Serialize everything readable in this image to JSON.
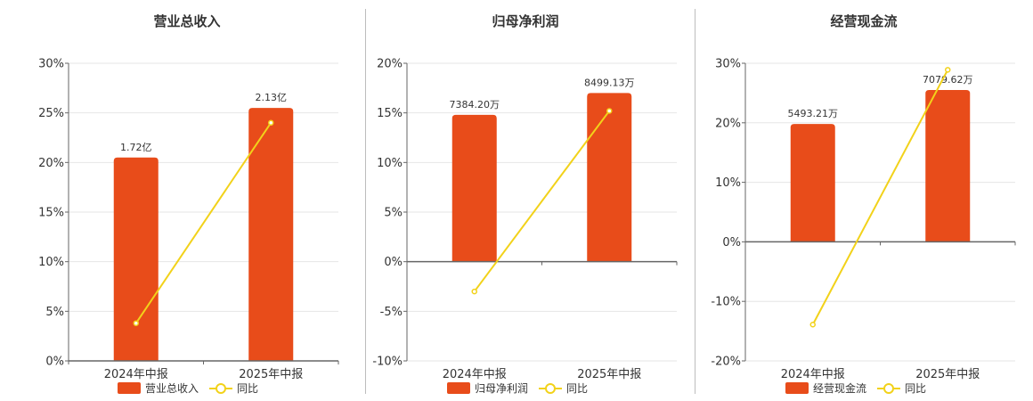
{
  "colors": {
    "bar": "#E84C1A",
    "line": "#F2D21A",
    "grid": "#e6e6e6",
    "axis": "#666666"
  },
  "charts": [
    {
      "title": "营业总收入",
      "legend": {
        "bar": "营业总收入",
        "line": "同比"
      },
      "chart_data": {
        "type": "bar",
        "categories": [
          "2024年中报",
          "2025年中报"
        ],
        "series": [
          {
            "name": "营业总收入",
            "type": "bar",
            "values": [
              20.5,
              25.5
            ],
            "labels": [
              "1.72亿",
              "2.13亿"
            ]
          },
          {
            "name": "同比",
            "type": "line",
            "values": [
              3.8,
              24.0
            ]
          }
        ],
        "ylim": [
          0,
          30
        ],
        "yticks": [
          0,
          5,
          10,
          15,
          20,
          25,
          30
        ],
        "tick_labels": [
          "0%",
          "5%",
          "10%",
          "15%",
          "20%",
          "25%",
          "30%"
        ],
        "grid": true,
        "legend_position": "bottom"
      }
    },
    {
      "title": "归母净利润",
      "legend": {
        "bar": "归母净利润",
        "line": "同比"
      },
      "chart_data": {
        "type": "bar",
        "categories": [
          "2024年中报",
          "2025年中报"
        ],
        "series": [
          {
            "name": "归母净利润",
            "type": "bar",
            "values": [
              14.8,
              17.0
            ],
            "labels": [
              "7384.20万",
              "8499.13万"
            ]
          },
          {
            "name": "同比",
            "type": "line",
            "values": [
              -3.0,
              15.2
            ]
          }
        ],
        "ylim": [
          -10,
          20
        ],
        "yticks": [
          -10,
          -5,
          0,
          5,
          10,
          15,
          20
        ],
        "tick_labels": [
          "-10%",
          "-5%",
          "0%",
          "5%",
          "10%",
          "15%",
          "20%"
        ],
        "grid": true,
        "legend_position": "bottom"
      }
    },
    {
      "title": "经营现金流",
      "legend": {
        "bar": "经营现金流",
        "line": "同比"
      },
      "chart_data": {
        "type": "bar",
        "categories": [
          "2024年中报",
          "2025年中报"
        ],
        "series": [
          {
            "name": "经营现金流",
            "type": "bar",
            "values": [
              19.8,
              25.5
            ],
            "labels": [
              "5493.21万",
              "7079.62万"
            ]
          },
          {
            "name": "同比",
            "type": "line",
            "values": [
              -13.9,
              28.9
            ]
          }
        ],
        "ylim": [
          -20,
          30
        ],
        "yticks": [
          -20,
          -10,
          0,
          10,
          20,
          30
        ],
        "tick_labels": [
          "-20%",
          "-10%",
          "0%",
          "10%",
          "20%",
          "30%"
        ],
        "grid": true,
        "legend_position": "bottom"
      }
    }
  ]
}
